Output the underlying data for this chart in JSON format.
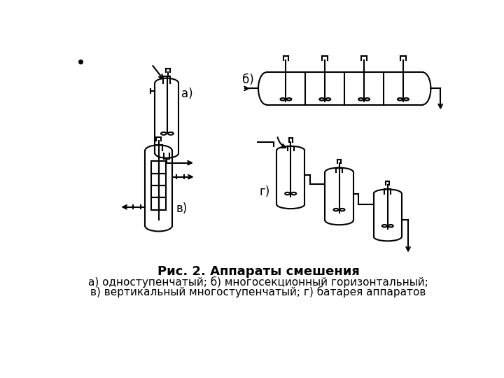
{
  "title_bold": "Рис. 2. Аппараты смешения",
  "line1": "а) одноступенчатый; б) многосекционный горизонтальный;",
  "line2": "в) вертикальный многоступенчатый; г) батарея аппаратов",
  "bg_color": "#ffffff",
  "line_color": "#000000",
  "font_size_title": 13,
  "font_size_label": 12
}
